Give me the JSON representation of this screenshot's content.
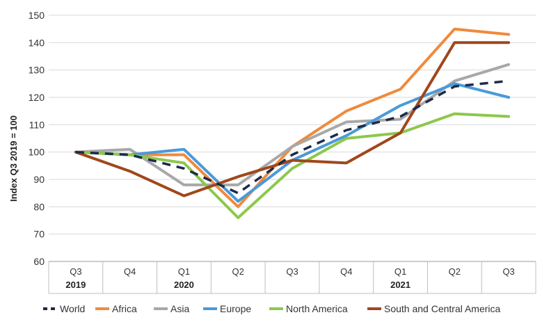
{
  "chart_data": {
    "type": "line",
    "title": "",
    "ylabel": "Index Q3 2019 = 100",
    "xlabel": "",
    "ylim": [
      60,
      150
    ],
    "yticks": [
      60,
      70,
      80,
      90,
      100,
      110,
      120,
      130,
      140,
      150
    ],
    "grid": true,
    "legend": "bottom",
    "categories": [
      "Q3",
      "Q4",
      "Q1",
      "Q2",
      "Q3",
      "Q4",
      "Q1",
      "Q2",
      "Q3"
    ],
    "year_labels": [
      {
        "index": 0,
        "label": "2019"
      },
      {
        "index": 2,
        "label": "2020"
      },
      {
        "index": 6,
        "label": "2021"
      }
    ],
    "series": [
      {
        "name": "World",
        "color": "#1c2b4a",
        "dashed": true,
        "values": [
          100,
          99,
          94,
          85,
          99,
          108,
          113,
          124,
          126
        ]
      },
      {
        "name": "Africa",
        "color": "#f08a3c",
        "dashed": false,
        "values": [
          100,
          99,
          99,
          80,
          102,
          115,
          123,
          145,
          143
        ]
      },
      {
        "name": "Asia",
        "color": "#a8a8a8",
        "dashed": false,
        "values": [
          100,
          101,
          88,
          88,
          102,
          111,
          112,
          126,
          132
        ]
      },
      {
        "name": "Europe",
        "color": "#4a9ad9",
        "dashed": false,
        "values": [
          100,
          99,
          101,
          82,
          97,
          106,
          117,
          125,
          120
        ]
      },
      {
        "name": "North America",
        "color": "#8cc84b",
        "dashed": false,
        "values": [
          100,
          99,
          96,
          76,
          94,
          105,
          107,
          114,
          113
        ]
      },
      {
        "name": "South and Central America",
        "color": "#a0471c",
        "dashed": false,
        "values": [
          100,
          93,
          84,
          91,
          97,
          96,
          107,
          140,
          140
        ]
      }
    ]
  }
}
